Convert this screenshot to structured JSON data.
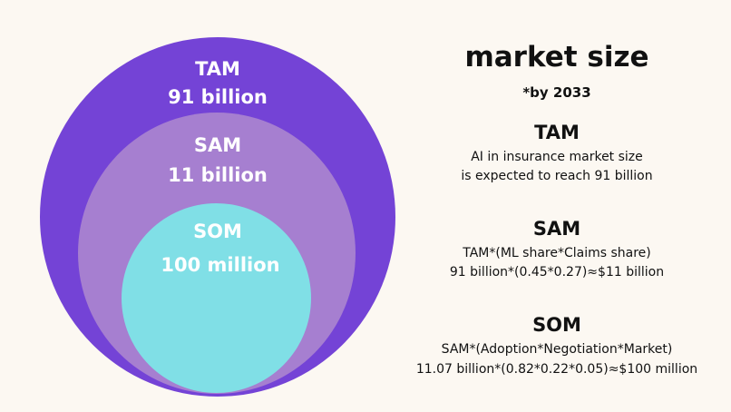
{
  "colors": {
    "background": "#fcf8f2",
    "tam_circle": "#7443d6",
    "sam_circle": "#a67fd0",
    "som_circle": "#80dfe6",
    "circle_text": "#ffffff",
    "body_text": "#111111"
  },
  "diagram": {
    "tam": {
      "name": "TAM",
      "value": "91 billion"
    },
    "sam": {
      "name": "SAM",
      "value": "11 billion"
    },
    "som": {
      "name": "SOM",
      "value": "100 million"
    }
  },
  "header": {
    "title": "market size",
    "subtitle": "*by 2033"
  },
  "sections": {
    "tam": {
      "title": "TAM",
      "line1": "AI in insurance market size",
      "line2": "is expected to reach 91 billion"
    },
    "sam": {
      "title": "SAM",
      "line1": "TAM*(ML share*Claims share)",
      "line2": "91 billion*(0.45*0.27)≈$11 billion"
    },
    "som": {
      "title": "SOM",
      "line1": "SAM*(Adoption*Negotiation*Market)",
      "line2": "11.07 billion*(0.82*0.22*0.05)≈$100 million"
    }
  }
}
